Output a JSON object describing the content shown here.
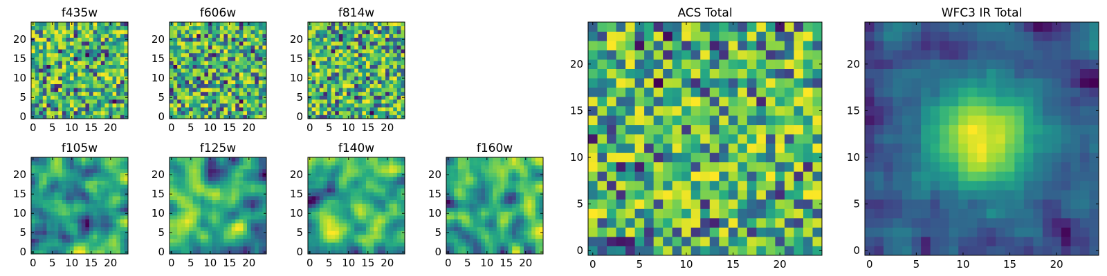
{
  "chart_data": [
    {
      "type": "heatmap",
      "title": "f435w",
      "grid": [
        25,
        25
      ],
      "xticks": [
        "0",
        "5",
        "10",
        "15",
        "20"
      ],
      "yticks": [
        "0",
        "5",
        "10",
        "15",
        "20"
      ],
      "xlim": [
        -0.5,
        24.5
      ],
      "ylim": [
        -0.5,
        24.5
      ],
      "colormap": "viridis",
      "pattern": "noise",
      "seed": 11
    },
    {
      "type": "heatmap",
      "title": "f606w",
      "grid": [
        25,
        25
      ],
      "xticks": [
        "0",
        "5",
        "10",
        "15",
        "20"
      ],
      "yticks": [
        "0",
        "5",
        "10",
        "15",
        "20"
      ],
      "xlim": [
        -0.5,
        24.5
      ],
      "ylim": [
        -0.5,
        24.5
      ],
      "colormap": "viridis",
      "pattern": "noise",
      "seed": 23
    },
    {
      "type": "heatmap",
      "title": "f814w",
      "grid": [
        25,
        25
      ],
      "xticks": [
        "0",
        "5",
        "10",
        "15",
        "20"
      ],
      "yticks": [
        "0",
        "5",
        "10",
        "15",
        "20"
      ],
      "xlim": [
        -0.5,
        24.5
      ],
      "ylim": [
        -0.5,
        24.5
      ],
      "colormap": "viridis",
      "pattern": "noise",
      "seed": 37
    },
    {
      "type": "heatmap",
      "title": "f105w",
      "grid": [
        25,
        25
      ],
      "xticks": [
        "0",
        "5",
        "10",
        "15",
        "20"
      ],
      "yticks": [
        "0",
        "5",
        "10",
        "15",
        "20"
      ],
      "xlim": [
        -0.5,
        24.5
      ],
      "ylim": [
        -0.5,
        24.5
      ],
      "colormap": "viridis",
      "pattern": "smooth",
      "seed": 41
    },
    {
      "type": "heatmap",
      "title": "f125w",
      "grid": [
        25,
        25
      ],
      "xticks": [
        "0",
        "5",
        "10",
        "15",
        "20"
      ],
      "yticks": [
        "0",
        "5",
        "10",
        "15",
        "20"
      ],
      "xlim": [
        -0.5,
        24.5
      ],
      "ylim": [
        -0.5,
        24.5
      ],
      "colormap": "viridis",
      "pattern": "smooth",
      "seed": 53
    },
    {
      "type": "heatmap",
      "title": "f140w",
      "grid": [
        25,
        25
      ],
      "xticks": [
        "0",
        "5",
        "10",
        "15",
        "20"
      ],
      "yticks": [
        "0",
        "5",
        "10",
        "15",
        "20"
      ],
      "xlim": [
        -0.5,
        24.5
      ],
      "ylim": [
        -0.5,
        24.5
      ],
      "colormap": "viridis",
      "pattern": "smooth",
      "seed": 67
    },
    {
      "type": "heatmap",
      "title": "f160w",
      "grid": [
        25,
        25
      ],
      "xticks": [
        "0",
        "5",
        "10",
        "15",
        "20"
      ],
      "yticks": [
        "0",
        "5",
        "10",
        "15",
        "20"
      ],
      "xlim": [
        -0.5,
        24.5
      ],
      "ylim": [
        -0.5,
        24.5
      ],
      "colormap": "viridis",
      "pattern": "smooth",
      "seed": 79
    },
    {
      "type": "heatmap",
      "title": "ACS Total",
      "grid": [
        25,
        25
      ],
      "xticks": [
        "0",
        "5",
        "10",
        "15",
        "20"
      ],
      "yticks": [
        "0",
        "5",
        "10",
        "15",
        "20"
      ],
      "xlim": [
        -0.5,
        24.5
      ],
      "ylim": [
        -0.5,
        24.5
      ],
      "colormap": "viridis",
      "pattern": "noise",
      "seed": 97
    },
    {
      "type": "heatmap",
      "title": "WFC3 IR Total",
      "grid": [
        25,
        25
      ],
      "xticks": [
        "0",
        "5",
        "10",
        "15",
        "20"
      ],
      "yticks": [
        "0",
        "5",
        "10",
        "15",
        "20"
      ],
      "xlim": [
        -0.5,
        24.5
      ],
      "ylim": [
        -0.5,
        24.5
      ],
      "colormap": "viridis",
      "pattern": "centered",
      "seed": 113
    }
  ]
}
